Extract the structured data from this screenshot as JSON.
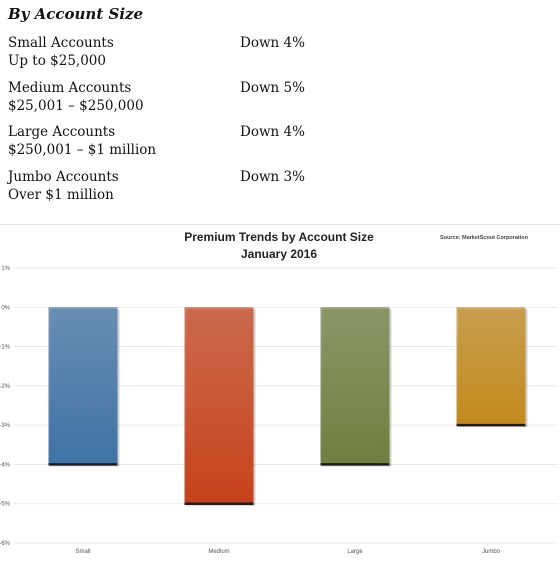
{
  "heading": "By Account Size",
  "accounts": [
    {
      "name": "Small Accounts",
      "range": "Up to $25,000",
      "change": "Down 4%"
    },
    {
      "name": "Medium Accounts",
      "range": "$25,001 – $250,000",
      "change": "Down 5%"
    },
    {
      "name": "Large Accounts",
      "range": "$250,001 – $1 million",
      "change": "Down 4%"
    },
    {
      "name": "Jumbo Accounts",
      "range": "Over $1 million",
      "change": "Down 3%"
    }
  ],
  "chart_data": {
    "type": "bar",
    "title": "Premium Trends by Account Size",
    "subtitle": "January 2016",
    "source": "Source: MarketScout Corporation",
    "categories": [
      "Small",
      "Medium",
      "Large",
      "Jumbo"
    ],
    "values": [
      -4,
      -5,
      -4,
      -3
    ],
    "ylim": [
      -6,
      1
    ],
    "yticks": [
      "1%",
      "0%",
      "-1%",
      "-2%",
      "-3%",
      "-4%",
      "-5%",
      "-6%"
    ],
    "grid": true,
    "colors": [
      "#3f73a6",
      "#c8421a",
      "#6f7f3e",
      "#c48a1c"
    ]
  }
}
